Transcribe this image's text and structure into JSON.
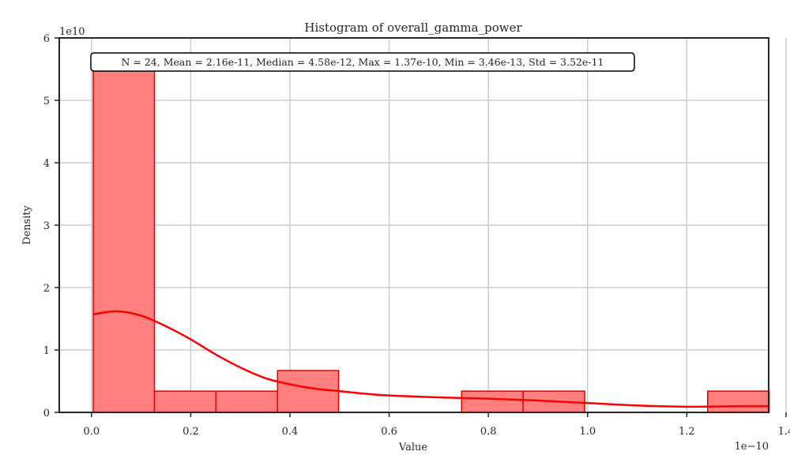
{
  "chart_data": {
    "type": "bar",
    "title": "Histogram of overall_gamma_power",
    "xlabel": "Value",
    "ylabel": "Density",
    "x_offset_text": "1e−10",
    "y_offset_text": "1e10",
    "stats_text": "N = 24, Mean = 2.16e-11, Median = 4.58e-12, Max = 1.37e-10, Min = 3.46e-13, Std = 3.52e-11",
    "xlim": [
      -0.065,
      1.365
    ],
    "ylim": [
      0,
      6
    ],
    "x_ticks": [
      0.0,
      0.2,
      0.4,
      0.6,
      0.8,
      1.0,
      1.2,
      1.4
    ],
    "x_tick_labels": [
      "0.0",
      "0.2",
      "0.4",
      "0.6",
      "0.8",
      "1.0",
      "1.2",
      "1.4"
    ],
    "y_ticks": [
      0,
      1,
      2,
      3,
      4,
      5,
      6
    ],
    "y_tick_labels": [
      "0",
      "1",
      "2",
      "3",
      "4",
      "5",
      "6"
    ],
    "grid": true,
    "bins": [
      {
        "x0": 0.0035,
        "x1": 0.127,
        "density": 5.6
      },
      {
        "x0": 0.127,
        "x1": 0.251,
        "density": 0.34
      },
      {
        "x0": 0.251,
        "x1": 0.375,
        "density": 0.34
      },
      {
        "x0": 0.375,
        "x1": 0.498,
        "density": 0.67
      },
      {
        "x0": 0.498,
        "x1": 0.622,
        "density": 0
      },
      {
        "x0": 0.622,
        "x1": 0.746,
        "density": 0
      },
      {
        "x0": 0.746,
        "x1": 0.87,
        "density": 0.34
      },
      {
        "x0": 0.87,
        "x1": 0.994,
        "density": 0.34
      },
      {
        "x0": 0.994,
        "x1": 1.118,
        "density": 0
      },
      {
        "x0": 1.118,
        "x1": 1.242,
        "density": 0
      },
      {
        "x0": 1.242,
        "x1": 1.366,
        "density": 0.34
      }
    ],
    "kde": {
      "x": [
        0.0035,
        0.05,
        0.1,
        0.15,
        0.2,
        0.25,
        0.3,
        0.35,
        0.4,
        0.45,
        0.5,
        0.55,
        0.6,
        0.7,
        0.8,
        0.9,
        1.0,
        1.1,
        1.2,
        1.3,
        1.366
      ],
      "y": [
        1.57,
        1.62,
        1.55,
        1.38,
        1.17,
        0.93,
        0.72,
        0.55,
        0.45,
        0.38,
        0.34,
        0.3,
        0.27,
        0.24,
        0.22,
        0.19,
        0.15,
        0.11,
        0.09,
        0.1,
        0.1
      ]
    },
    "colors": {
      "bar_fill": "#ff7f7f",
      "bar_edge": "#e00000",
      "kde_line": "#ff0000",
      "grid": "#cccccc",
      "axes": "#262626"
    }
  }
}
